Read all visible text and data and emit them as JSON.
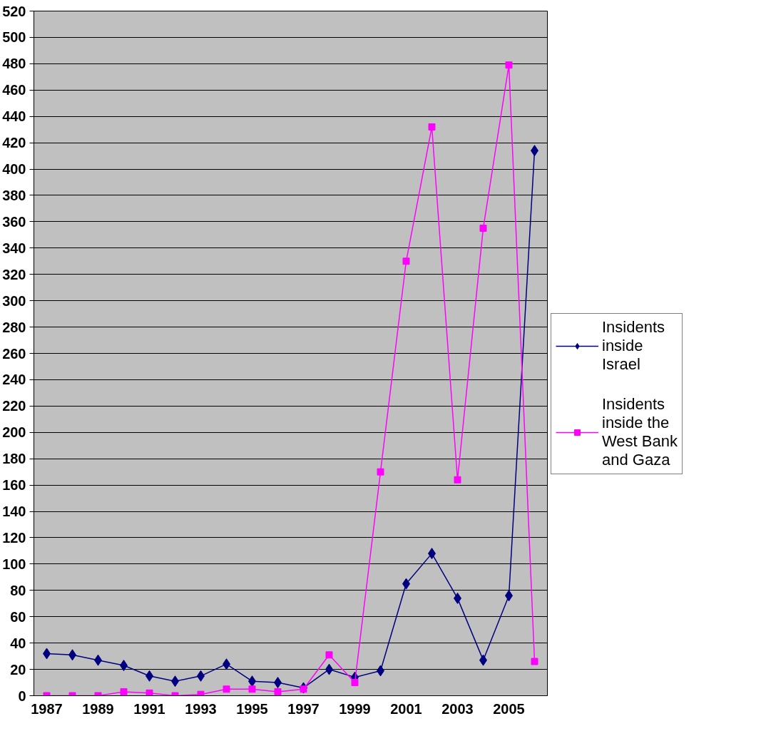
{
  "chart_data": {
    "type": "line",
    "categories": [
      "1987",
      null,
      "1989",
      null,
      "1991",
      null,
      "1993",
      null,
      "1995",
      null,
      "1997",
      null,
      "1999",
      null,
      "2001",
      null,
      "2003",
      null,
      "2005",
      null
    ],
    "series": [
      {
        "name": "Insidents inside Israel",
        "color": "#000080",
        "marker": "diamond",
        "values": [
          32,
          31,
          27,
          23,
          15,
          11,
          15,
          24,
          11,
          10,
          6,
          20,
          14,
          19,
          85,
          108,
          74,
          27,
          76,
          414
        ]
      },
      {
        "name": "Insidents inside the West Bank and Gaza",
        "color": "#ff00ff",
        "marker": "square",
        "values": [
          0,
          0,
          0,
          3,
          2,
          0,
          1,
          5,
          5,
          3,
          5,
          31,
          10,
          170,
          330,
          432,
          164,
          355,
          479,
          26
        ]
      }
    ],
    "ylim": [
      0,
      520
    ],
    "yticks": [
      0,
      20,
      40,
      60,
      80,
      100,
      120,
      140,
      160,
      180,
      200,
      220,
      240,
      260,
      280,
      300,
      320,
      340,
      360,
      380,
      400,
      420,
      440,
      460,
      480,
      500,
      520
    ],
    "grid": "y",
    "legend": "right",
    "line_style": "solid"
  }
}
